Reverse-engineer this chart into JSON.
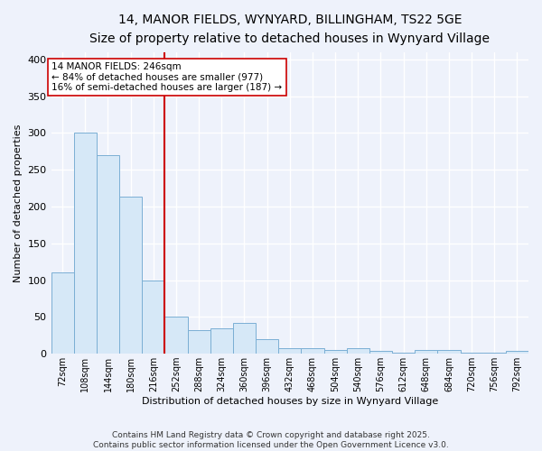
{
  "title_line1": "14, MANOR FIELDS, WYNYARD, BILLINGHAM, TS22 5GE",
  "title_line2": "Size of property relative to detached houses in Wynyard Village",
  "xlabel": "Distribution of detached houses by size in Wynyard Village",
  "ylabel": "Number of detached properties",
  "bar_color": "#d6e8f7",
  "bar_edge_color": "#7bafd4",
  "background_color": "#eef2fb",
  "grid_color": "#c8d4e8",
  "annotation_text": "14 MANOR FIELDS: 246sqm\n← 84% of detached houses are smaller (977)\n16% of semi-detached houses are larger (187) →",
  "vline_x": 252,
  "vline_color": "#cc0000",
  "categories": [
    "72sqm",
    "108sqm",
    "144sqm",
    "180sqm",
    "216sqm",
    "252sqm",
    "288sqm",
    "324sqm",
    "360sqm",
    "396sqm",
    "432sqm",
    "468sqm",
    "504sqm",
    "540sqm",
    "576sqm",
    "612sqm",
    "648sqm",
    "684sqm",
    "720sqm",
    "756sqm",
    "792sqm"
  ],
  "values": [
    110,
    300,
    270,
    213,
    100,
    50,
    32,
    35,
    42,
    20,
    7,
    7,
    5,
    7,
    4,
    2,
    5,
    5,
    2,
    1,
    4
  ],
  "bin_edges": [
    72,
    108,
    144,
    180,
    216,
    252,
    288,
    324,
    360,
    396,
    432,
    468,
    504,
    540,
    576,
    612,
    648,
    684,
    720,
    756,
    792,
    828
  ],
  "bin_width": 36,
  "ylim": [
    0,
    410
  ],
  "yticks": [
    0,
    50,
    100,
    150,
    200,
    250,
    300,
    350,
    400
  ],
  "footnote": "Contains HM Land Registry data © Crown copyright and database right 2025.\nContains public sector information licensed under the Open Government Licence v3.0.",
  "title_fontsize": 10,
  "subtitle_fontsize": 9,
  "footnote_fontsize": 6.5,
  "ylabel_fontsize": 8,
  "xlabel_fontsize": 8
}
